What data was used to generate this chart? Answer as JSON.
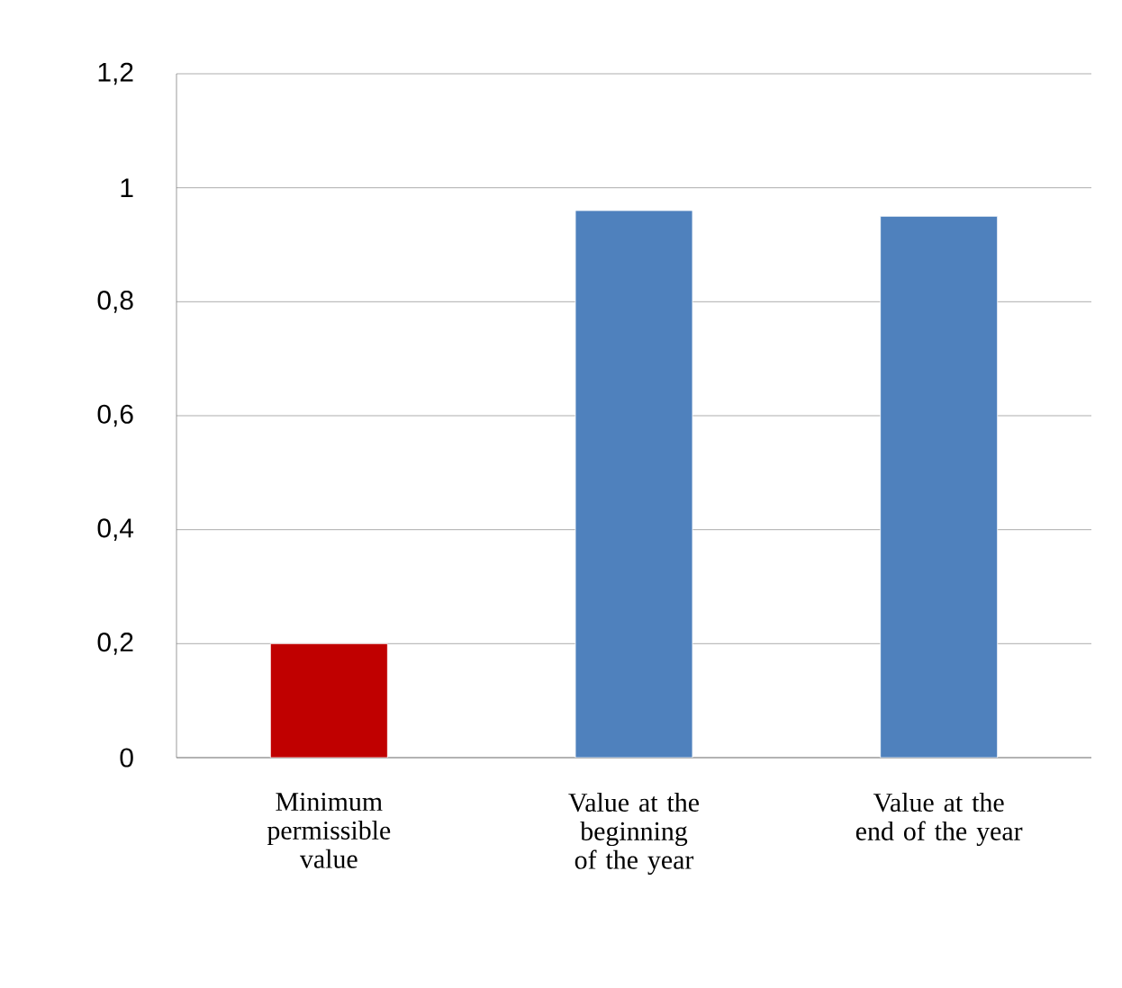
{
  "chart_data": {
    "type": "bar",
    "categories": [
      "Minimum permissible value",
      "Value at the beginning of the year",
      "Value at the end of the year"
    ],
    "values": [
      0.2,
      0.96,
      0.95
    ],
    "colors": [
      "#c00000",
      "#4f81bd",
      "#4f81bd"
    ],
    "ylim": [
      0,
      1.2
    ],
    "yticks": [
      0,
      {
        "value": 0.2,
        "label": "0,2"
      },
      {
        "value": 0.4,
        "label": "0,4"
      },
      {
        "value": 0.6,
        "label": "0,6"
      },
      {
        "value": 0.8,
        "label": "0,8"
      },
      1,
      {
        "value": 1.2,
        "label": "1,2"
      }
    ],
    "grid": "y"
  }
}
